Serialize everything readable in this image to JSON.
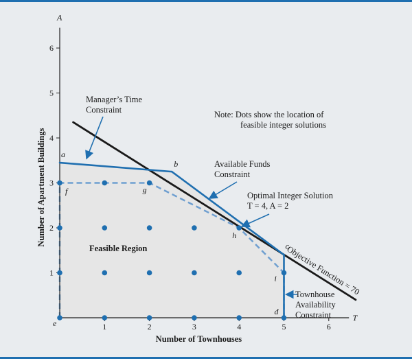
{
  "chart_data": {
    "type": "scatter",
    "xlabel": "Number of Townhouses",
    "ylabel": "Number of Apartment Buildings",
    "x_axis_letter": "T",
    "y_axis_letter": "A",
    "xlim": [
      0,
      6
    ],
    "ylim": [
      0,
      6
    ],
    "x_ticks": [
      "1",
      "2",
      "3",
      "4",
      "5",
      "6"
    ],
    "y_ticks": [
      "1",
      "2",
      "3",
      "4",
      "5",
      "6"
    ],
    "feasible_region": {
      "label": "Feasible Region",
      "vertices": [
        [
          0,
          0
        ],
        [
          0,
          3.45
        ],
        [
          2.5,
          3.25
        ],
        [
          5,
          1.4
        ],
        [
          5,
          0
        ]
      ]
    },
    "integer_hull": [
      [
        0,
        0
      ],
      [
        0,
        3
      ],
      [
        2,
        3
      ],
      [
        4,
        2
      ],
      [
        5,
        1
      ],
      [
        5,
        0
      ]
    ],
    "feasible_integer_points": [
      [
        0,
        0
      ],
      [
        1,
        0
      ],
      [
        2,
        0
      ],
      [
        3,
        0
      ],
      [
        4,
        0
      ],
      [
        5,
        0
      ],
      [
        0,
        1
      ],
      [
        1,
        1
      ],
      [
        2,
        1
      ],
      [
        3,
        1
      ],
      [
        4,
        1
      ],
      [
        5,
        1
      ],
      [
        0,
        2
      ],
      [
        1,
        2
      ],
      [
        2,
        2
      ],
      [
        3,
        2
      ],
      [
        4,
        2
      ],
      [
        0,
        3
      ],
      [
        1,
        3
      ],
      [
        2,
        3
      ]
    ],
    "vertex_labels": [
      {
        "name": "a",
        "x": 0,
        "y": 3.45
      },
      {
        "name": "b",
        "x": 2.5,
        "y": 3.25
      },
      {
        "name": "c",
        "x": 5,
        "y": 1.4
      },
      {
        "name": "d",
        "x": 5,
        "y": 0
      },
      {
        "name": "e",
        "x": 0,
        "y": 0
      },
      {
        "name": "f",
        "x": 0,
        "y": 3
      },
      {
        "name": "g",
        "x": 2,
        "y": 3
      },
      {
        "name": "h",
        "x": 4,
        "y": 2
      },
      {
        "name": "i",
        "x": 5,
        "y": 1
      }
    ],
    "lines": {
      "managers_time": {
        "label": "Manager’s Time\nConstraint",
        "points": [
          [
            0,
            3.45
          ],
          [
            2.5,
            3.25
          ]
        ]
      },
      "available_funds": {
        "label": "Available Funds\nConstraint",
        "points": [
          [
            2.5,
            3.25
          ],
          [
            5,
            1.4
          ]
        ]
      },
      "townhouse_availability": {
        "label": "Townhouse\nAvailability\nConstraint",
        "points": [
          [
            5,
            1.4
          ],
          [
            5,
            0
          ]
        ]
      },
      "objective_function": {
        "label": "Objective Function = 70",
        "points": [
          [
            0.3,
            4.35
          ],
          [
            6.6,
            0.4
          ]
        ]
      }
    },
    "optimal_solution": {
      "label": "Optimal Integer Solution",
      "value": "T = 4, A = 2",
      "x": 4,
      "y": 2
    },
    "note": "Note: Dots show the location of\nfeasible integer solutions",
    "colors": {
      "constraint": "#1f6fb0",
      "objective": "#1a1a1a",
      "hull": "#6f9fd0",
      "dot": "#1f6fb0",
      "region": "#e6e6e6"
    }
  }
}
